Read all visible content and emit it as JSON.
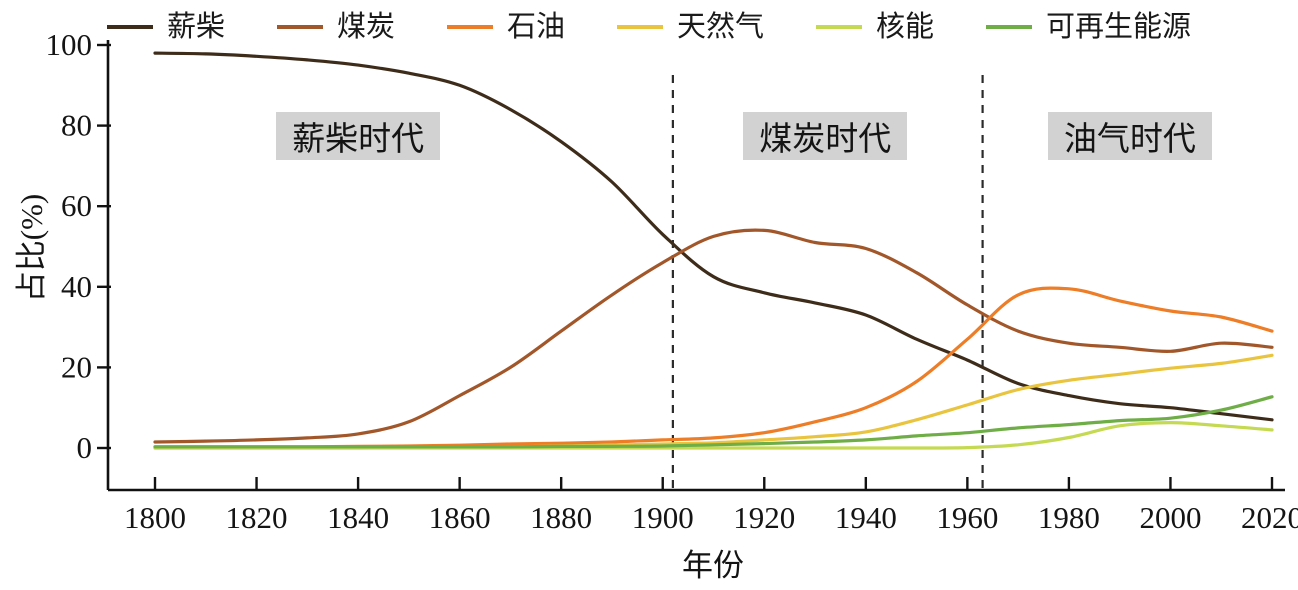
{
  "figure": {
    "background": "#ffffff",
    "text_color": "#1a1a1a"
  },
  "chart_data": {
    "type": "line",
    "title": "",
    "xlabel": "年份",
    "ylabel": "占比(%)",
    "xlim": [
      1800,
      2020
    ],
    "ylim": [
      0,
      100
    ],
    "xticks": [
      1800,
      1820,
      1840,
      1860,
      1880,
      1900,
      1920,
      1940,
      1960,
      1980,
      2000,
      2020
    ],
    "yticks": [
      0,
      20,
      40,
      60,
      80,
      100
    ],
    "grid": false,
    "legend_position": "top",
    "x": [
      1800,
      1810,
      1820,
      1830,
      1840,
      1850,
      1860,
      1870,
      1880,
      1890,
      1900,
      1910,
      1920,
      1930,
      1940,
      1950,
      1960,
      1970,
      1980,
      1990,
      2000,
      2010,
      2020
    ],
    "series": [
      {
        "name": "薪柴",
        "color": "#3E2C1A",
        "values": [
          98,
          97.8,
          97.2,
          96.3,
          95,
          93,
          90,
          84,
          76,
          66,
          53,
          42.5,
          38.5,
          36,
          33,
          27,
          21.8,
          16,
          13,
          11,
          10,
          8.5,
          7
        ]
      },
      {
        "name": "煤炭",
        "color": "#A2572A",
        "values": [
          1.5,
          1.7,
          2,
          2.5,
          3.5,
          6.5,
          13,
          20,
          29,
          38,
          46,
          52.5,
          54,
          51,
          49.5,
          43.5,
          35.5,
          29,
          26,
          25,
          24,
          26,
          25
        ]
      },
      {
        "name": "石油",
        "color": "#ED7D26",
        "values": [
          0.3,
          0.3,
          0.3,
          0.3,
          0.4,
          0.5,
          0.7,
          1,
          1.2,
          1.5,
          2,
          2.5,
          3.8,
          6.5,
          10,
          16.5,
          27,
          38,
          39.5,
          36.5,
          34,
          32.5,
          29
        ]
      },
      {
        "name": "天然气",
        "color": "#E9C43E",
        "values": [
          0,
          0,
          0,
          0,
          0,
          0.1,
          0.2,
          0.3,
          0.5,
          0.7,
          1,
          1.3,
          2,
          2.8,
          4,
          7,
          10.7,
          14.5,
          16.8,
          18.3,
          19.8,
          21,
          23
        ]
      },
      {
        "name": "核能",
        "color": "#C5D952",
        "values": [
          0,
          0,
          0,
          0,
          0,
          0,
          0,
          0,
          0,
          0,
          0,
          0,
          0,
          0,
          0,
          0,
          0.1,
          0.8,
          2.6,
          5.5,
          6.3,
          5.5,
          4.5
        ]
      },
      {
        "name": "可再生能源",
        "color": "#6FAD47",
        "values": [
          0.3,
          0.3,
          0.3,
          0.3,
          0.3,
          0.3,
          0.3,
          0.3,
          0.4,
          0.4,
          0.5,
          0.8,
          1.1,
          1.5,
          2,
          3,
          3.8,
          5,
          5.8,
          6.8,
          7.4,
          9.4,
          12.7
        ]
      }
    ],
    "dashed_boundary_years": [
      1902,
      1963
    ],
    "eras": [
      {
        "label": "薪柴时代",
        "center_year": 1840
      },
      {
        "label": "煤炭时代",
        "center_year": 1932
      },
      {
        "label": "油气时代",
        "center_year": 1992
      }
    ],
    "era_background": "#d2d2d2"
  }
}
